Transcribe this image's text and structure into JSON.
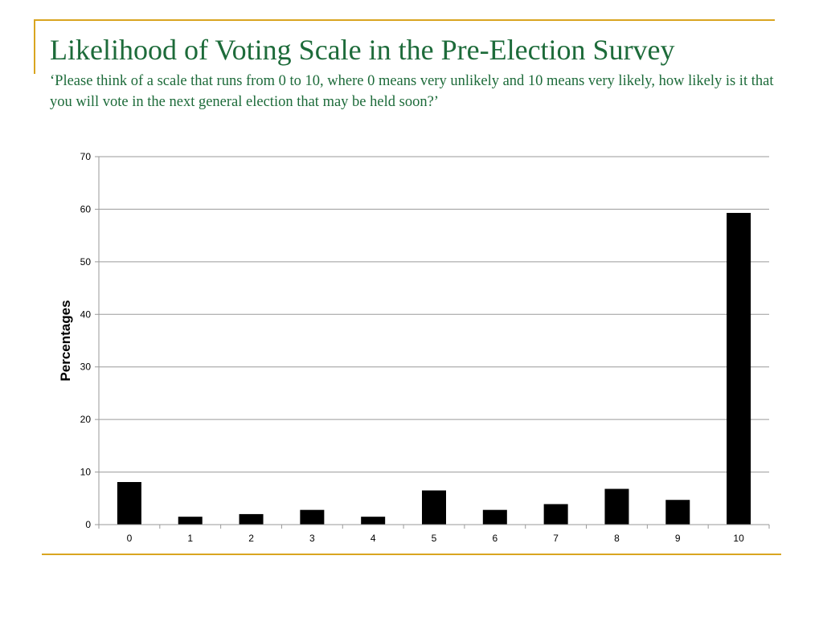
{
  "slide": {
    "title": "Likelihood of Voting Scale in the Pre-Election Survey",
    "subtitle": "‘Please think of a scale that runs from 0 to 10, where 0 means very unlikely and 10 means very likely, how likely is it that you will vote in the next general election that may be held soon?’"
  },
  "colors": {
    "title_text": "#1d6b3a",
    "frame_accent": "#d9a520",
    "bar_fill": "#000000",
    "gridline": "#9a9a9a"
  },
  "chart_data": {
    "type": "bar",
    "categories": [
      "0",
      "1",
      "2",
      "3",
      "4",
      "5",
      "6",
      "7",
      "8",
      "9",
      "10"
    ],
    "values": [
      8.1,
      1.5,
      2.0,
      2.8,
      1.5,
      6.5,
      2.8,
      3.9,
      6.8,
      4.7,
      59.3
    ],
    "title": "",
    "xlabel": "",
    "ylabel": "Percentages",
    "ylim": [
      0,
      70
    ],
    "yticks": [
      "0",
      "10",
      "20",
      "30",
      "40",
      "50",
      "60",
      "70"
    ],
    "grid": true,
    "legend": "none"
  }
}
